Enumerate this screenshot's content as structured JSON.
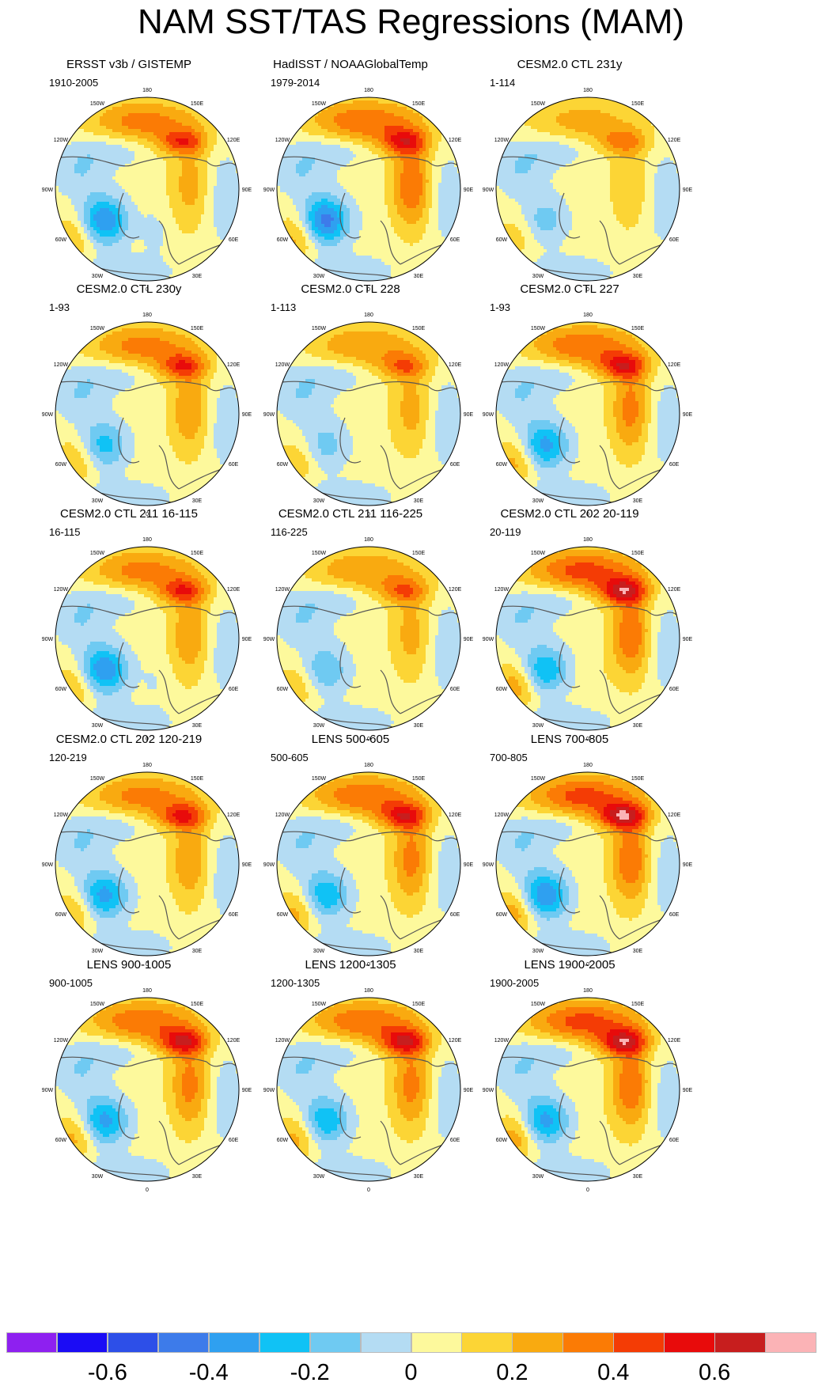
{
  "title": "NAM SST/TAS Regressions (MAM)",
  "panels": [
    {
      "title": "ERSST v3b / GISTEMP",
      "period": "1910-2005",
      "amp": 0.55,
      "atl": -0.45,
      "pac": 0.3,
      "eur": 0.2
    },
    {
      "title": "HadISST / NOAAGlobalTemp",
      "period": "1979-2014",
      "amp": 0.6,
      "atl": -0.5,
      "pac": 0.35,
      "eur": 0.35
    },
    {
      "title": "CESM2.0 CTL 231y",
      "period": "1-114",
      "amp": 0.4,
      "atl": -0.2,
      "pac": 0.2,
      "eur": 0.15
    },
    {
      "title": "CESM2.0 CTL 230y",
      "period": "1-93",
      "amp": 0.55,
      "atl": -0.3,
      "pac": 0.3,
      "eur": 0.25
    },
    {
      "title": "CESM2.0 CTL 228",
      "period": "1-113",
      "amp": 0.45,
      "atl": -0.2,
      "pac": 0.25,
      "eur": 0.2
    },
    {
      "title": "CESM2.0 CTL 227",
      "period": "1-93",
      "amp": 0.65,
      "atl": -0.4,
      "pac": 0.35,
      "eur": 0.3
    },
    {
      "title": "CESM2.0 CTL 211 16-115",
      "period": "16-115",
      "amp": 0.55,
      "atl": -0.45,
      "pac": 0.3,
      "eur": 0.25
    },
    {
      "title": "CESM2.0 CTL 211 116-225",
      "period": "116-225",
      "amp": 0.45,
      "atl": -0.25,
      "pac": 0.25,
      "eur": 0.2
    },
    {
      "title": "CESM2.0 CTL 202 20-119",
      "period": "20-119",
      "amp": 0.75,
      "atl": -0.35,
      "pac": 0.4,
      "eur": 0.35
    },
    {
      "title": "CESM2.0 CTL 202 120-219",
      "period": "120-219",
      "amp": 0.6,
      "atl": -0.4,
      "pac": 0.3,
      "eur": 0.25
    },
    {
      "title": "LENS 500-605",
      "period": "500-605",
      "amp": 0.65,
      "atl": -0.35,
      "pac": 0.35,
      "eur": 0.3
    },
    {
      "title": "LENS 700-805",
      "period": "700-805",
      "amp": 0.8,
      "atl": -0.45,
      "pac": 0.4,
      "eur": 0.35
    },
    {
      "title": "LENS 900-1005",
      "period": "900-1005",
      "amp": 0.7,
      "atl": -0.4,
      "pac": 0.35,
      "eur": 0.3
    },
    {
      "title": "LENS 1200-1305",
      "period": "1200-1305",
      "amp": 0.7,
      "atl": -0.35,
      "pac": 0.35,
      "eur": 0.3
    },
    {
      "title": "LENS 1900-2005",
      "period": "1900-2005",
      "amp": 0.75,
      "atl": -0.4,
      "pac": 0.4,
      "eur": 0.35
    }
  ],
  "lon_labels": [
    "180",
    "150E",
    "120E",
    "90E",
    "60E",
    "30E",
    "0",
    "30W",
    "60W",
    "90W",
    "120W",
    "150W"
  ],
  "chart_data": {
    "type": "heatmap",
    "title": "NAM SST/TAS Regressions (MAM)",
    "projection": "north polar stereographic",
    "colorbar": {
      "levels": [
        -0.7,
        -0.6,
        -0.5,
        -0.4,
        -0.3,
        -0.2,
        -0.1,
        0,
        0.1,
        0.2,
        0.3,
        0.4,
        0.5,
        0.6,
        0.7
      ],
      "colors": [
        "#8e20f0",
        "#1b0cf5",
        "#2d4fe8",
        "#3d7bea",
        "#2fa0f0",
        "#10c2f5",
        "#6fcaf2",
        "#b4dcf3",
        "#fdf99c",
        "#fcd535",
        "#f9aa10",
        "#fb7b05",
        "#f43c05",
        "#e80b0b",
        "#c71e1e",
        "#fbb3b6"
      ],
      "tick_labels": [
        "-0.6",
        "-0.4",
        "-0.2",
        "0",
        "0.2",
        "0.4",
        "0.6"
      ],
      "tick_values": [
        -0.6,
        -0.4,
        -0.2,
        0,
        0.2,
        0.4,
        0.6
      ]
    }
  }
}
